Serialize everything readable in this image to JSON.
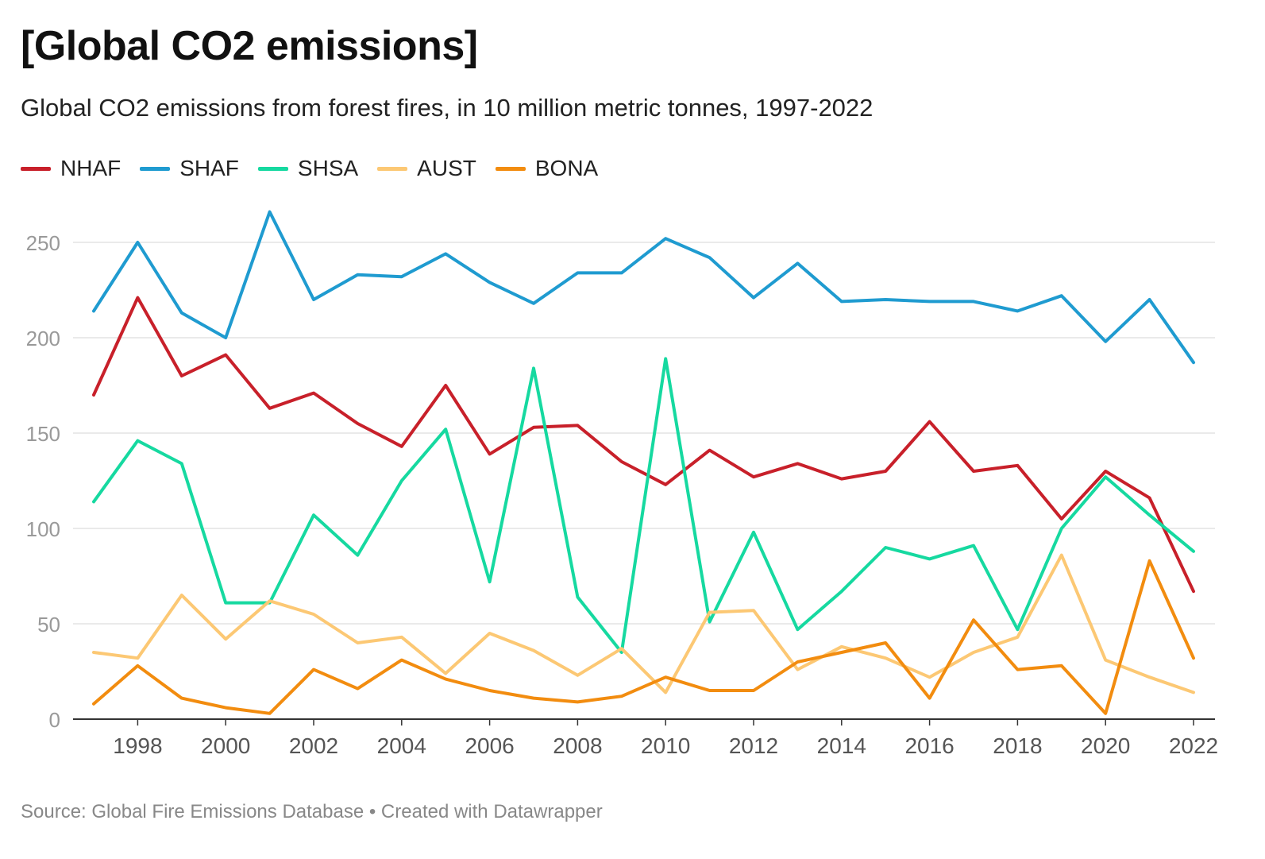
{
  "header": {
    "title": "[Global CO2 emissions]",
    "subtitle": "Global CO2 emissions from forest fires, in 10 million metric tonnes, 1997-2022"
  },
  "footer": {
    "text": "Source: Global Fire Emissions Database • Created with Datawrapper"
  },
  "chart_data": {
    "type": "line",
    "title": "[Global CO2 emissions]",
    "subtitle": "Global CO2 emissions from forest fires, in 10 million metric tonnes, 1997-2022",
    "xlabel": "",
    "ylabel": "",
    "x": [
      1997,
      1998,
      1999,
      2000,
      2001,
      2002,
      2003,
      2004,
      2005,
      2006,
      2007,
      2008,
      2009,
      2010,
      2011,
      2012,
      2013,
      2014,
      2015,
      2016,
      2017,
      2018,
      2019,
      2020,
      2021,
      2022
    ],
    "xticks": [
      "1998",
      "2000",
      "2002",
      "2004",
      "2006",
      "2008",
      "2010",
      "2012",
      "2014",
      "2016",
      "2018",
      "2020",
      "2022"
    ],
    "yticks": [
      "0",
      "50",
      "100",
      "150",
      "200",
      "250"
    ],
    "xlim": [
      1997,
      2022
    ],
    "ylim": [
      0,
      270
    ],
    "grid": "horizontal",
    "legend_position": "top-left",
    "series": [
      {
        "name": "NHAF",
        "color": "#c8202a",
        "values": [
          170,
          221,
          180,
          191,
          163,
          171,
          155,
          143,
          175,
          139,
          153,
          154,
          135,
          123,
          141,
          127,
          134,
          126,
          130,
          156,
          130,
          133,
          105,
          130,
          116,
          67
        ]
      },
      {
        "name": "SHAF",
        "color": "#1f9bd0",
        "values": [
          214,
          250,
          213,
          200,
          266,
          220,
          233,
          232,
          244,
          229,
          218,
          234,
          234,
          252,
          242,
          221,
          239,
          219,
          220,
          219,
          219,
          214,
          222,
          198,
          220,
          187
        ]
      },
      {
        "name": "SHSA",
        "color": "#16d9a0",
        "values": [
          114,
          146,
          134,
          61,
          61,
          107,
          86,
          125,
          152,
          72,
          184,
          64,
          35,
          189,
          51,
          98,
          47,
          67,
          90,
          84,
          91,
          47,
          100,
          127,
          107,
          88
        ]
      },
      {
        "name": "AUST",
        "color": "#fcc874",
        "values": [
          35,
          32,
          65,
          42,
          62,
          55,
          40,
          43,
          24,
          45,
          36,
          23,
          37,
          14,
          56,
          57,
          26,
          38,
          32,
          22,
          35,
          43,
          86,
          31,
          22,
          14
        ]
      },
      {
        "name": "BONA",
        "color": "#f28c0f",
        "values": [
          8,
          28,
          11,
          6,
          3,
          26,
          16,
          31,
          21,
          15,
          11,
          9,
          12,
          22,
          15,
          15,
          30,
          35,
          40,
          11,
          52,
          26,
          28,
          3,
          83,
          32
        ]
      }
    ]
  }
}
